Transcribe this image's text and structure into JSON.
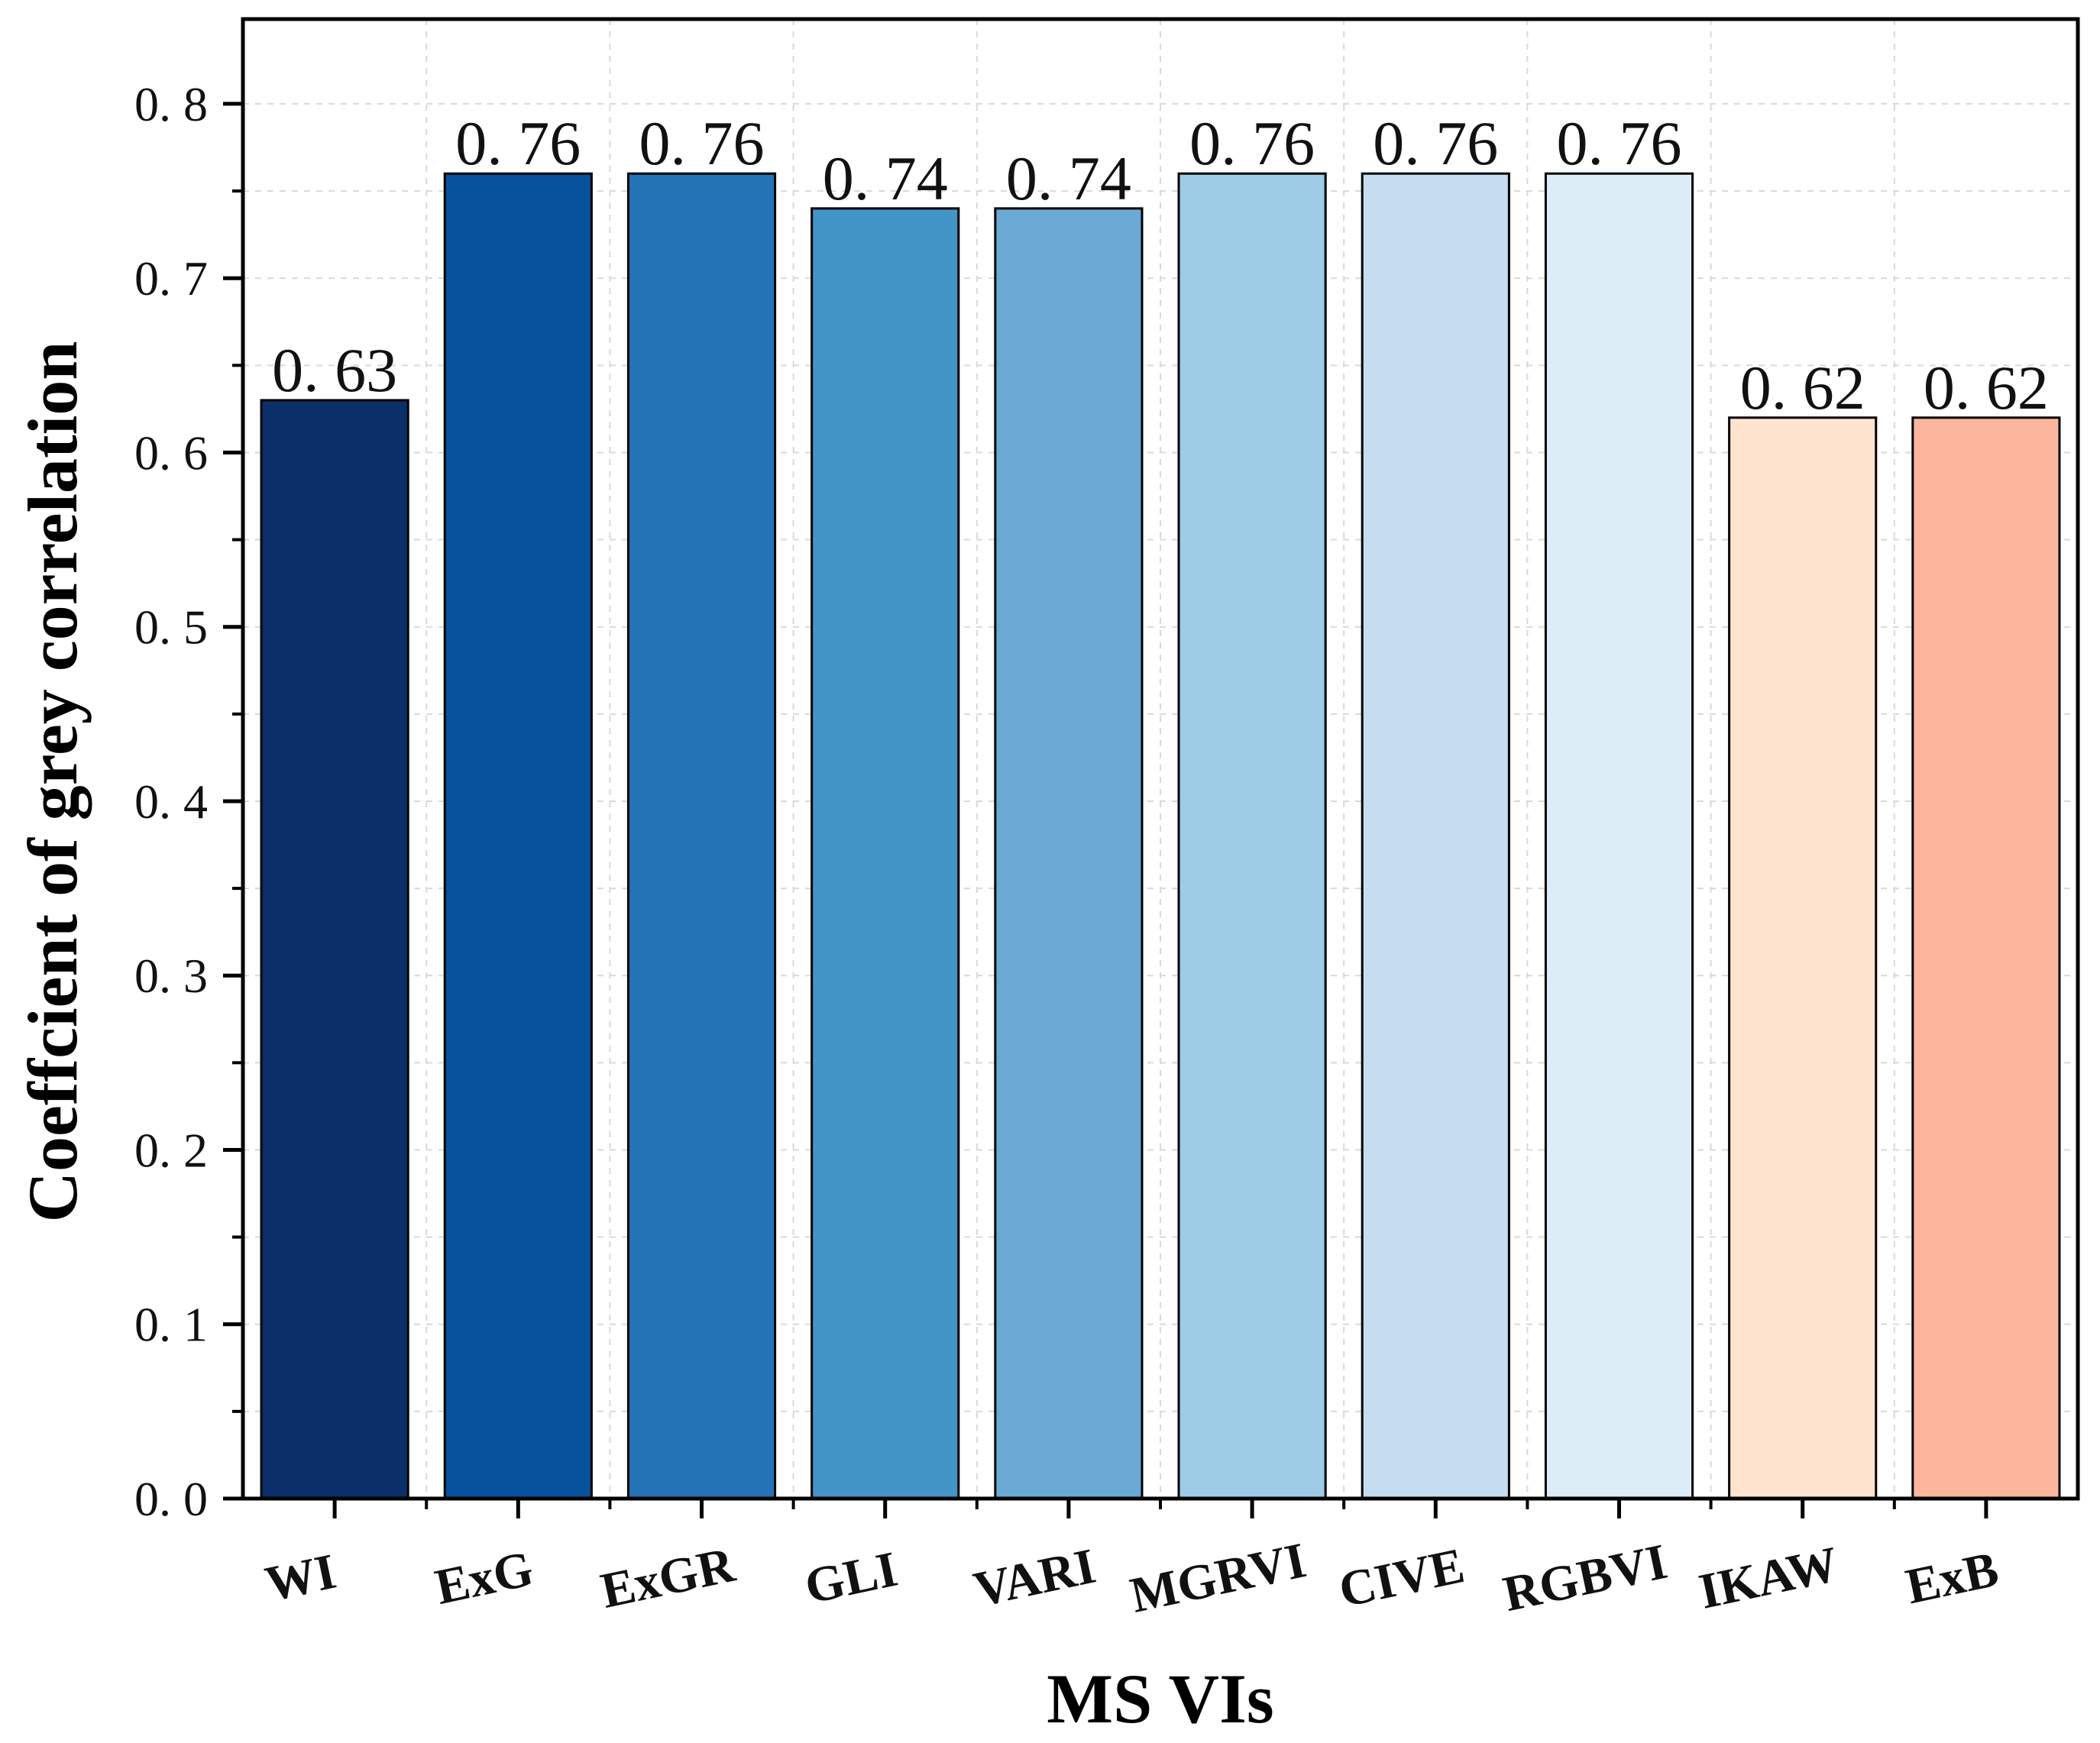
{
  "chart_data": {
    "type": "bar",
    "title": "",
    "xlabel": "MS VIs",
    "ylabel": "Coeffcient of grey correlation",
    "categories": [
      "WI",
      "ExG",
      "ExGR",
      "GLI",
      "VARI",
      "MGRVI",
      "CIVE",
      "RGBVI",
      "IKAW",
      "ExB"
    ],
    "values": [
      0.63,
      0.76,
      0.76,
      0.74,
      0.74,
      0.76,
      0.76,
      0.76,
      0.62,
      0.62
    ],
    "value_labels": [
      "0. 63",
      "0. 76",
      "0. 76",
      "0. 74",
      "0. 74",
      "0. 76",
      "0. 76",
      "0. 76",
      "0. 62",
      "0. 62"
    ],
    "colors": [
      "#0b2f69",
      "#08519c",
      "#2373b6",
      "#4394c7",
      "#69a9d4",
      "#9dcbe5",
      "#c6dcf0",
      "#ddedf7",
      "#fee3cf",
      "#fcb69e"
    ],
    "ylim": [
      0,
      0.8
    ],
    "yticks": [
      0.0,
      0.1,
      0.2,
      0.3,
      0.4,
      0.5,
      0.6,
      0.7,
      0.8
    ],
    "ytick_labels": [
      "0. 0",
      "0. 1",
      "0. 2",
      "0. 3",
      "0. 4",
      "0. 5",
      "0. 6",
      "0. 7",
      "0. 8"
    ],
    "grid": true,
    "legend": "none"
  }
}
